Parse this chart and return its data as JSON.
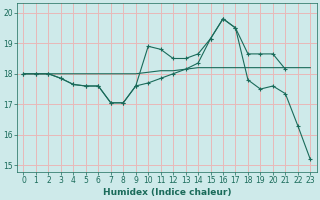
{
  "xlabel": "Humidex (Indice chaleur)",
  "bg_color": "#ceeaea",
  "grid_color": "#e8b8b8",
  "line_color": "#1a6b5a",
  "xlim": [
    -0.5,
    23.5
  ],
  "ylim": [
    14.8,
    20.3
  ],
  "yticks": [
    15,
    16,
    17,
    18,
    19,
    20
  ],
  "xticks": [
    0,
    1,
    2,
    3,
    4,
    5,
    6,
    7,
    8,
    9,
    10,
    11,
    12,
    13,
    14,
    15,
    16,
    17,
    18,
    19,
    20,
    21,
    22,
    23
  ],
  "line1_x": [
    0,
    1,
    2,
    3,
    4,
    5,
    6,
    7,
    8,
    9,
    10,
    11,
    12,
    13,
    14,
    15,
    16,
    17,
    18,
    19,
    20,
    21,
    22,
    23
  ],
  "line1_y": [
    18.0,
    18.0,
    18.0,
    18.0,
    18.0,
    18.0,
    18.0,
    18.0,
    18.0,
    18.0,
    18.05,
    18.1,
    18.1,
    18.15,
    18.2,
    18.2,
    18.2,
    18.2,
    18.2,
    18.2,
    18.2,
    18.2,
    18.2,
    18.2
  ],
  "line2_x": [
    0,
    1,
    2,
    3,
    4,
    5,
    6,
    7,
    8,
    9,
    10,
    11,
    12,
    13,
    14,
    15,
    16,
    17,
    18,
    19,
    20,
    21
  ],
  "line2_y": [
    18.0,
    18.0,
    18.0,
    17.85,
    17.65,
    17.6,
    17.6,
    17.05,
    17.05,
    17.6,
    18.9,
    18.8,
    18.5,
    18.5,
    18.65,
    19.15,
    19.8,
    19.5,
    18.65,
    18.65,
    18.65,
    18.15
  ],
  "line3_x": [
    0,
    1,
    2,
    3,
    4,
    5,
    6,
    7,
    8,
    9,
    10,
    11,
    12,
    13,
    14,
    15,
    16,
    17,
    18,
    19,
    20,
    21,
    22,
    23
  ],
  "line3_y": [
    18.0,
    18.0,
    18.0,
    17.85,
    17.65,
    17.6,
    17.6,
    17.05,
    17.05,
    17.6,
    17.7,
    17.85,
    18.0,
    18.15,
    18.35,
    19.15,
    19.8,
    19.5,
    17.8,
    17.5,
    17.6,
    17.35,
    16.3,
    15.2
  ]
}
